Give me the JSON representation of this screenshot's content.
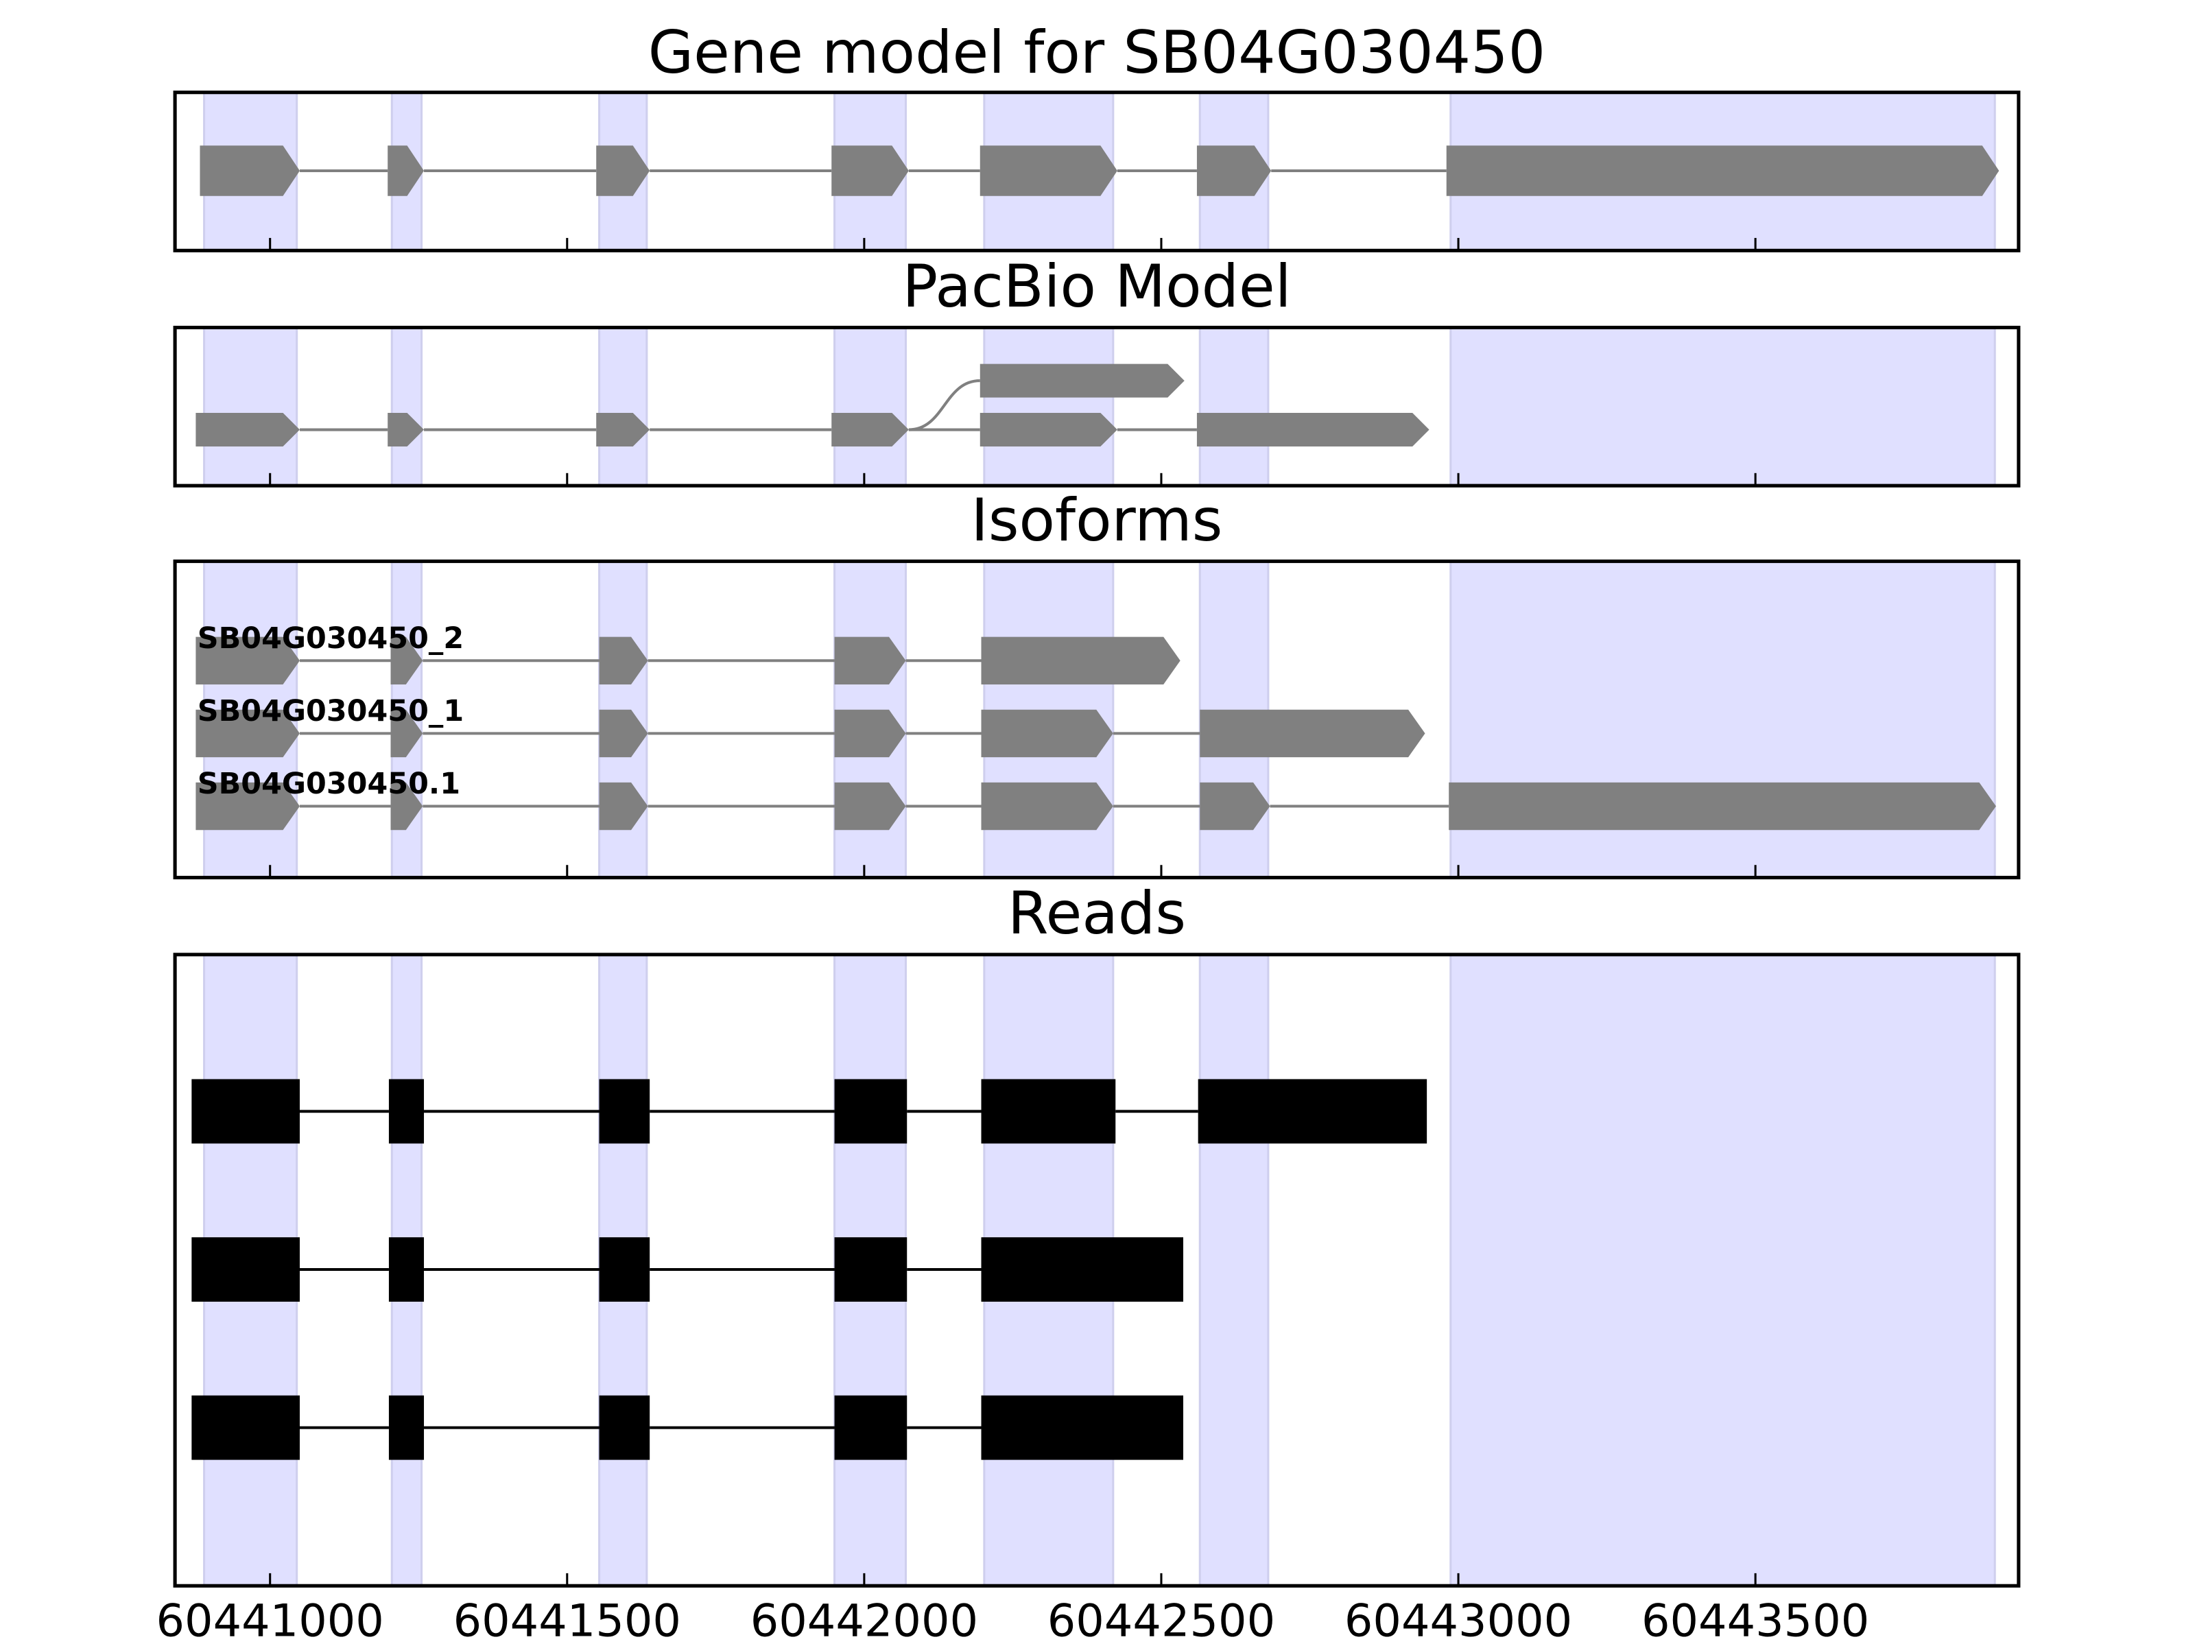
{
  "chart_data": [
    {
      "type": "gene",
      "title": "Gene model for SB04G030450",
      "color": "#808080",
      "shade_color": "#e0e0ff",
      "xlim": [
        60440840,
        60443943
      ],
      "xticks": [
        60441000,
        60441500,
        60442000,
        60442500,
        60443000,
        60443500
      ],
      "tick_labels": false,
      "shaded": [
        [
          60440889,
          60441045
        ],
        [
          60441205,
          60441255
        ],
        [
          60441554,
          60441634
        ],
        [
          60441950,
          60442070
        ],
        [
          60442202,
          60442419
        ],
        [
          60442565,
          60442680
        ],
        [
          60442987,
          60443903
        ]
      ],
      "transcripts": [
        {
          "exons": [
            [
              60440882,
              60441050
            ],
            [
              60441198,
              60441259
            ],
            [
              60441549,
              60441639
            ],
            [
              60441945,
              60442075
            ],
            [
              60442195,
              60442426
            ],
            [
              60442560,
              60442685
            ],
            [
              60442980,
              60443910
            ]
          ]
        }
      ]
    },
    {
      "type": "splice-graph",
      "title": "PacBio Model",
      "color": "#808080",
      "shade_color": "#e0e0ff",
      "xlim": [
        60440840,
        60443943
      ],
      "xticks": [
        60441000,
        60441500,
        60442000,
        60442500,
        60443000,
        60443500
      ],
      "tick_labels": false,
      "shaded": [
        [
          60440889,
          60441045
        ],
        [
          60441205,
          60441255
        ],
        [
          60441554,
          60441634
        ],
        [
          60441950,
          60442070
        ],
        [
          60442202,
          60442419
        ],
        [
          60442565,
          60442680
        ],
        [
          60442987,
          60443903
        ]
      ],
      "transcripts": [
        {
          "exons": [
            [
              60440875,
              60441050
            ],
            [
              60441198,
              60441259
            ],
            [
              60441549,
              60441639
            ],
            [
              60441945,
              60442075
            ],
            [
              60442195,
              60442426
            ],
            [
              60442560,
              60442951
            ]
          ]
        },
        {
          "exons": [
            [
              60440875,
              60441050
            ],
            [
              60441198,
              60441259
            ],
            [
              60441549,
              60441639
            ],
            [
              60441945,
              60442075
            ],
            [
              60442195,
              60442539
            ]
          ]
        }
      ]
    },
    {
      "type": "isoforms",
      "title": "Isoforms",
      "color": "#808080",
      "shade_color": "#e0e0ff",
      "xlim": [
        60440840,
        60443943
      ],
      "xticks": [
        60441000,
        60441500,
        60442000,
        60442500,
        60443000,
        60443500
      ],
      "tick_labels": false,
      "shaded": [
        [
          60440889,
          60441045
        ],
        [
          60441205,
          60441255
        ],
        [
          60441554,
          60441634
        ],
        [
          60441950,
          60442070
        ],
        [
          60442202,
          60442419
        ],
        [
          60442565,
          60442680
        ],
        [
          60442987,
          60443903
        ]
      ],
      "transcripts": [
        {
          "name": "SB04G030450_2",
          "exons": [
            [
              60440875,
              60441050
            ],
            [
              60441203,
              60441257
            ],
            [
              60441554,
              60441636
            ],
            [
              60441950,
              60442070
            ],
            [
              60442197,
              60442532
            ]
          ]
        },
        {
          "name": "SB04G030450_1",
          "exons": [
            [
              60440875,
              60441050
            ],
            [
              60441203,
              60441257
            ],
            [
              60441554,
              60441636
            ],
            [
              60441950,
              60442070
            ],
            [
              60442197,
              60442419
            ],
            [
              60442565,
              60442944
            ]
          ]
        },
        {
          "name": "SB04G030450.1",
          "exons": [
            [
              60440875,
              60441050
            ],
            [
              60441203,
              60441257
            ],
            [
              60441554,
              60441636
            ],
            [
              60441950,
              60442070
            ],
            [
              60442197,
              60442419
            ],
            [
              60442565,
              60442683
            ],
            [
              60442984,
              60443905
            ]
          ]
        }
      ]
    },
    {
      "type": "reads",
      "title": "Reads",
      "color": "#000000",
      "shade_color": "#e0e0ff",
      "xlim": [
        60440840,
        60443943
      ],
      "xticks": [
        60441000,
        60441500,
        60442000,
        60442500,
        60443000,
        60443500
      ],
      "tick_labels": true,
      "shaded": [
        [
          60440889,
          60441045
        ],
        [
          60441205,
          60441255
        ],
        [
          60441554,
          60441634
        ],
        [
          60441950,
          60442070
        ],
        [
          60442202,
          60442419
        ],
        [
          60442565,
          60442680
        ],
        [
          60442987,
          60443903
        ]
      ],
      "transcripts": [
        {
          "exons": [
            [
              60440868,
              60441050
            ],
            [
              60441200,
              60441259
            ],
            [
              60441554,
              60441639
            ],
            [
              60441950,
              60442072
            ],
            [
              60442197,
              60442423
            ],
            [
              60442562,
              60442947
            ]
          ]
        },
        {
          "exons": [
            [
              60440868,
              60441050
            ],
            [
              60441200,
              60441259
            ],
            [
              60441554,
              60441639
            ],
            [
              60441950,
              60442072
            ],
            [
              60442197,
              60442537
            ]
          ]
        },
        {
          "exons": [
            [
              60440868,
              60441050
            ],
            [
              60441200,
              60441259
            ],
            [
              60441554,
              60441639
            ],
            [
              60441950,
              60442072
            ],
            [
              60442197,
              60442537
            ]
          ]
        }
      ]
    }
  ]
}
